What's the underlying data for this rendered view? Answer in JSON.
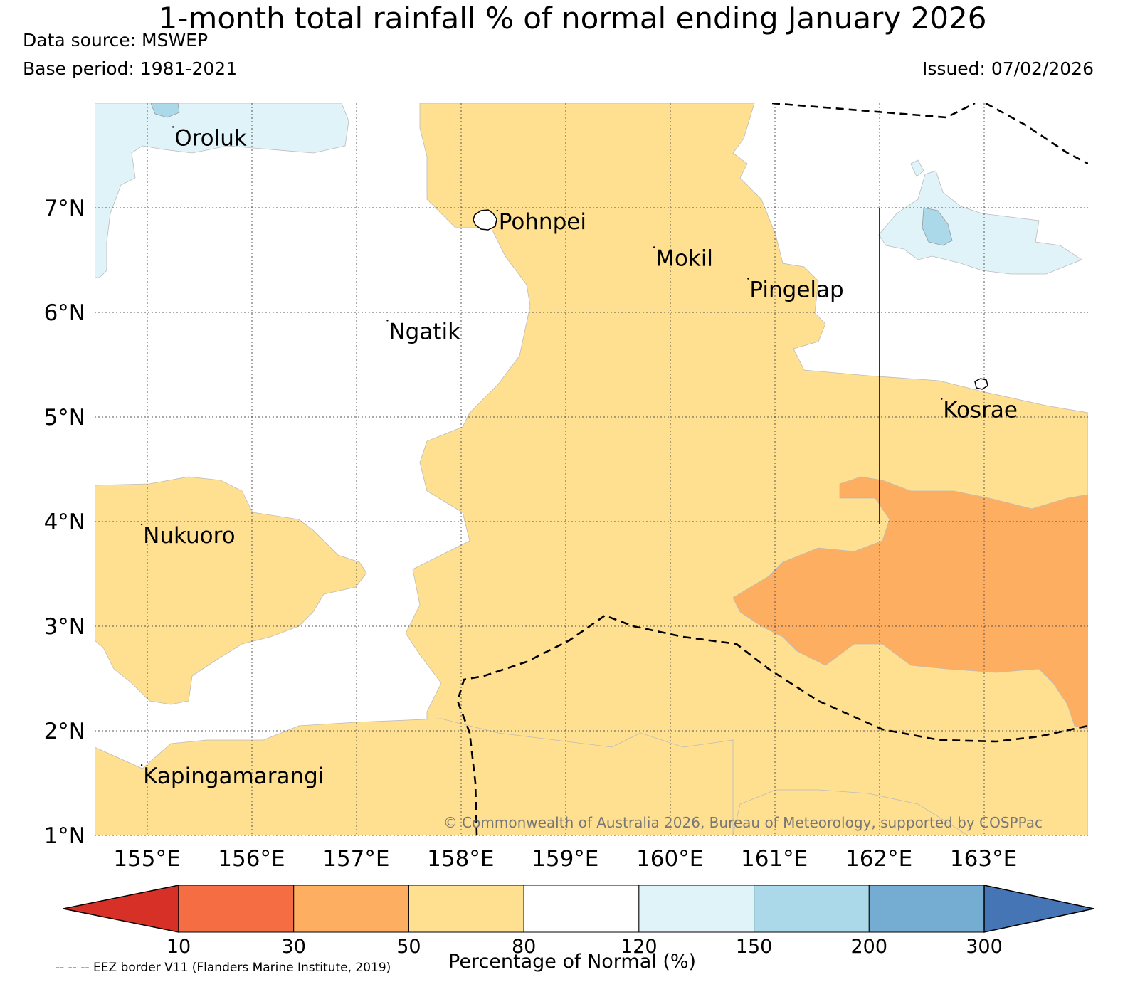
{
  "title": "1-month total rainfall % of normal ending January 2026",
  "data_source": "Data source: MSWEP",
  "base_period": "Base period: 1981-2021",
  "issued": "Issued: 07/02/2026",
  "copyright": "© Commonwealth of Australia 2026, Bureau of Meteorology, supported by COSPPac",
  "eez_note": "-- -- -- EEZ border V11 (Flanders Marine Institute, 2019)",
  "map": {
    "lon_range": [
      154.5,
      164.0
    ],
    "lat_range": [
      1.0,
      8.0
    ],
    "lon_ticks": [
      "155°E",
      "156°E",
      "157°E",
      "158°E",
      "159°E",
      "160°E",
      "161°E",
      "162°E",
      "163°E"
    ],
    "lat_ticks": [
      "1°N",
      "2°N",
      "3°N",
      "4°N",
      "5°N",
      "6°N",
      "7°N"
    ],
    "places": [
      {
        "name": "Oroluk",
        "lon": 155.25,
        "lat": 7.65
      },
      {
        "name": "Pohnpei",
        "lon": 158.35,
        "lat": 6.85
      },
      {
        "name": "Mokil",
        "lon": 159.85,
        "lat": 6.5
      },
      {
        "name": "Pingelap",
        "lon": 160.75,
        "lat": 6.2
      },
      {
        "name": "Ngatik",
        "lon": 157.3,
        "lat": 5.8
      },
      {
        "name": "Kosrae",
        "lon": 162.6,
        "lat": 5.05
      },
      {
        "name": "Nukuoro",
        "lon": 154.95,
        "lat": 3.85
      },
      {
        "name": "Kapingamarangi",
        "lon": 154.95,
        "lat": 1.55
      }
    ]
  },
  "colorbar": {
    "title": "Percentage of Normal (%)",
    "ticks": [
      "10",
      "30",
      "50",
      "80",
      "120",
      "150",
      "200",
      "300"
    ],
    "colors": [
      "#d73027",
      "#f46d43",
      "#fdae61",
      "#fee090",
      "#ffffff",
      "#e0f3f8",
      "#abd9e9",
      "#74add1",
      "#4575b4"
    ]
  },
  "colors": {
    "band_50_80": "#fee090",
    "band_30_50": "#fdae61",
    "band_120_150": "#e0f3f8",
    "band_150_200": "#abd9e9",
    "normal": "#ffffff"
  }
}
